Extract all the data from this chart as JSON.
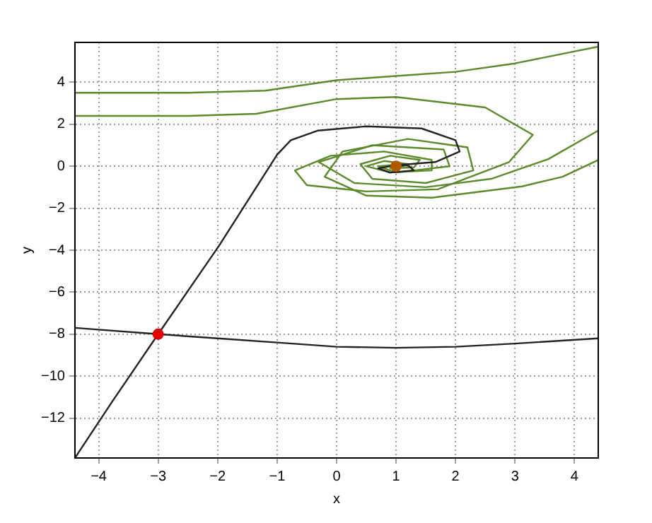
{
  "chart_data": {
    "type": "line",
    "xlabel": "x",
    "ylabel": "y",
    "xlim": [
      -4.4,
      4.4
    ],
    "ylim": [
      -13.9,
      5.9
    ],
    "xticks": [
      -4,
      -3,
      -2,
      -1,
      0,
      1,
      2,
      3,
      4
    ],
    "yticks": [
      -12,
      -10,
      -8,
      -6,
      -4,
      -2,
      0,
      2,
      4
    ],
    "grid": true,
    "legend": false,
    "marker": "none",
    "line_style": "solid",
    "series": [
      {
        "color": "#222222",
        "x": [
          -4.4,
          -3.77,
          -3,
          -1.98,
          -1.0,
          -0.77,
          -0.31,
          0.5,
          1.43,
          2.0,
          2.07,
          1.66,
          1.0,
          0.7,
          0.9,
          1.3,
          1.2,
          1.0
        ],
        "values": [
          -13.9,
          -11.2,
          -8,
          -3.8,
          0.55,
          1.24,
          1.7,
          1.9,
          1.8,
          1.24,
          0.7,
          0.2,
          0.05,
          -0.1,
          -0.3,
          -0.2,
          0.05,
          0
        ]
      },
      {
        "color": "#222222",
        "x": [
          -4.4,
          -3,
          -2,
          -1,
          0,
          1,
          2,
          3,
          4.4
        ],
        "values": [
          -7.7,
          -8,
          -8.2,
          -8.4,
          -8.6,
          -8.65,
          -8.6,
          -8.45,
          -8.2
        ]
      },
      {
        "color": "#5a8a2a",
        "x": [
          4.4,
          3,
          2,
          1,
          0,
          -1.2,
          -2.5,
          -4.4
        ],
        "values": [
          5.7,
          4.9,
          4.5,
          4.3,
          4.1,
          3.6,
          3.5,
          3.5
        ]
      },
      {
        "color": "#5a8a2a",
        "x": [
          1,
          1.2,
          0.8,
          0.5,
          0.9,
          1.6,
          1.6,
          0.8,
          -0.1,
          -0.7,
          -0.5,
          0.5,
          1.7,
          2.9,
          3.3,
          2.5,
          1,
          0,
          -1.35,
          -2.5,
          -4.4
        ],
        "values": [
          0,
          0.1,
          0.25,
          0,
          -0.3,
          -0.2,
          0.3,
          0.7,
          0.5,
          -0.2,
          -0.9,
          -1.2,
          -1.1,
          0.2,
          1.5,
          2.8,
          3.3,
          3.2,
          2.5,
          2.4,
          2.4
        ]
      },
      {
        "color": "#5a8a2a",
        "x": [
          1,
          0.9,
          1.3,
          1.4,
          0.9,
          0.4,
          0.6,
          1.5,
          2.3,
          2.2,
          1.2,
          0.1,
          -0.2,
          0.5,
          1.6,
          3.12,
          3.8,
          4.4
        ],
        "values": [
          0,
          -0.1,
          -0.05,
          0.3,
          0.5,
          0.1,
          -0.6,
          -0.8,
          -0.2,
          0.9,
          1.3,
          0.7,
          -0.5,
          -1.4,
          -1.5,
          -0.96,
          -0.5,
          0.3
        ]
      },
      {
        "color": "#5a8a2a",
        "x": [
          1,
          1.1,
          0.7,
          1.0,
          1.9,
          1.8,
          0.6,
          -0.3,
          0.3,
          1.5,
          2.6,
          3.56,
          4.4
        ],
        "values": [
          0,
          0.1,
          0,
          -0.3,
          0,
          0.8,
          1.0,
          0.2,
          -0.8,
          -1.0,
          -0.6,
          0.34,
          1.7
        ]
      },
      {
        "type": "scatter",
        "marker": "circle",
        "x": [
          -3,
          1
        ],
        "values": [
          -8,
          0
        ],
        "colors": [
          "#e00000",
          "#b05a00"
        ]
      }
    ]
  }
}
